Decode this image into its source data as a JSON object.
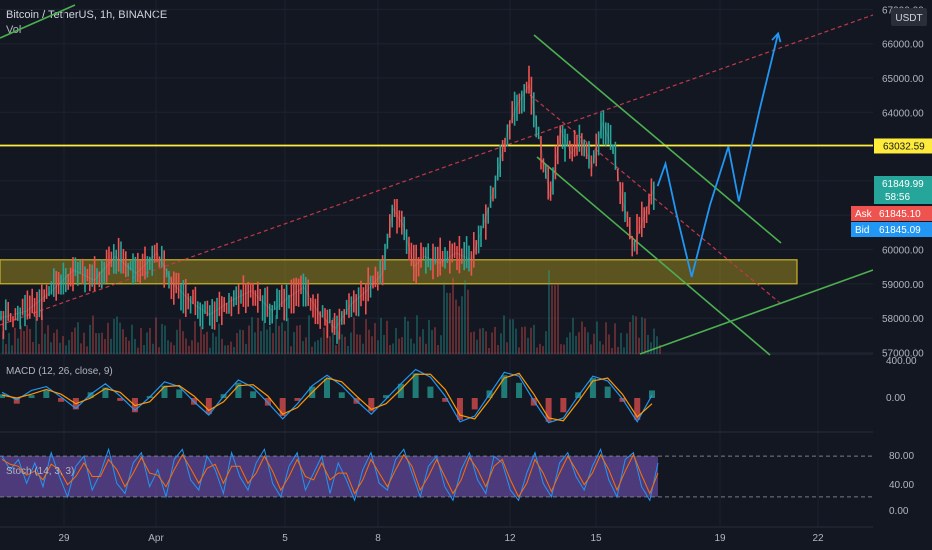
{
  "chart_data": {
    "type": "line",
    "title": "Bitcoin / TetherUS, 1h, BINANCE",
    "volume_label": "Vol",
    "currency": "USDT",
    "x_ticks": [
      "29",
      "Apr",
      "5",
      "8",
      "12",
      "15",
      "19",
      "22"
    ],
    "y_ticks": [
      57000,
      58000,
      59000,
      60000,
      61000,
      62000,
      63000,
      64000,
      65000,
      66000,
      67000
    ],
    "ylim": [
      57000,
      67000
    ],
    "price_path": [
      [
        0,
        58000
      ],
      [
        10,
        58200
      ],
      [
        20,
        58800
      ],
      [
        28,
        59400
      ],
      [
        36,
        59100
      ],
      [
        44,
        59800
      ],
      [
        52,
        59300
      ],
      [
        60,
        59900
      ],
      [
        66,
        59000
      ],
      [
        74,
        58400
      ],
      [
        80,
        58100
      ],
      [
        88,
        58500
      ],
      [
        96,
        58800
      ],
      [
        104,
        58200
      ],
      [
        110,
        58600
      ],
      [
        116,
        58900
      ],
      [
        122,
        58100
      ],
      [
        128,
        57700
      ],
      [
        134,
        58400
      ],
      [
        140,
        58800
      ],
      [
        146,
        59300
      ],
      [
        150,
        61200
      ],
      [
        154,
        60700
      ],
      [
        158,
        59500
      ],
      [
        162,
        59800
      ],
      [
        168,
        59600
      ],
      [
        174,
        59900
      ],
      [
        180,
        59700
      ],
      [
        184,
        60600
      ],
      [
        188,
        61600
      ],
      [
        194,
        63600
      ],
      [
        198,
        64300
      ],
      [
        202,
        64800
      ],
      [
        206,
        63200
      ],
      [
        210,
        61500
      ],
      [
        214,
        63500
      ],
      [
        218,
        62800
      ],
      [
        222,
        63200
      ],
      [
        226,
        62400
      ],
      [
        230,
        63700
      ],
      [
        234,
        62900
      ],
      [
        238,
        61300
      ],
      [
        242,
        60100
      ],
      [
        246,
        61000
      ],
      [
        250,
        61850
      ]
    ],
    "horizontal_levels": [
      {
        "value": 63032.59,
        "color": "#ffeb3b"
      }
    ],
    "support_zone": [
      59000,
      59700
    ],
    "projection_path": [
      [
        251,
        61850
      ],
      [
        254,
        62500
      ],
      [
        258,
        61100
      ],
      [
        264,
        59200
      ],
      [
        271,
        61300
      ],
      [
        278,
        63000
      ],
      [
        282,
        61400
      ],
      [
        290,
        64100
      ],
      [
        297,
        66300
      ]
    ],
    "price_labels": {
      "level": "63032.59",
      "last": "61849.99",
      "countdown": "58:56",
      "ask_tag": "Ask",
      "ask": "61845.10",
      "bid_tag": "Bid",
      "bid": "61845.09"
    },
    "macd": {
      "label": "MACD (12, 26, close, 9)",
      "y_ticks": [
        "400.00",
        "0.00"
      ],
      "histogram": [
        40,
        -60,
        30,
        80,
        -40,
        -120,
        60,
        110,
        -30,
        -150,
        20,
        130,
        90,
        -70,
        -170,
        40,
        160,
        70,
        -80,
        -190,
        -30,
        120,
        200,
        60,
        -60,
        -140,
        30,
        150,
        260,
        120,
        -40,
        -230,
        -120,
        80,
        240,
        160,
        -80,
        -250,
        -150,
        60,
        210,
        120,
        -40,
        -230,
        80
      ],
      "macd_line": [
        60,
        -20,
        80,
        120,
        10,
        -110,
        40,
        150,
        20,
        -130,
        10,
        170,
        120,
        -40,
        -180,
        20,
        190,
        110,
        -50,
        -220,
        -60,
        130,
        240,
        130,
        -30,
        -170,
        -10,
        150,
        300,
        220,
        20,
        -250,
        -190,
        40,
        270,
        230,
        -30,
        -260,
        -210,
        20,
        230,
        180,
        -10,
        -250,
        30
      ],
      "signal_line": [
        30,
        0,
        40,
        90,
        40,
        -60,
        0,
        100,
        60,
        -80,
        -40,
        120,
        130,
        20,
        -130,
        -40,
        130,
        140,
        20,
        -170,
        -100,
        60,
        210,
        170,
        20,
        -120,
        -60,
        90,
        250,
        250,
        90,
        -180,
        -220,
        -20,
        210,
        260,
        40,
        -210,
        -240,
        -40,
        180,
        210,
        40,
        -200,
        -60
      ]
    },
    "stoch": {
      "label": "Stoch (14, 3, 3)",
      "y_ticks": [
        "80.00",
        "40.00",
        "0.00"
      ],
      "band": [
        20,
        80
      ],
      "k_line": [
        80,
        60,
        75,
        40,
        70,
        35,
        85,
        50,
        20,
        65,
        80,
        30,
        55,
        90,
        40,
        25,
        70,
        85,
        35,
        60,
        20,
        75,
        90,
        45,
        30,
        80,
        60,
        25,
        85,
        50,
        30,
        70,
        90,
        40,
        20,
        65,
        85,
        30,
        55,
        80,
        25,
        70,
        45,
        15,
        60,
        85,
        40,
        30,
        75,
        90,
        55,
        20,
        65,
        80,
        35,
        15,
        60,
        85,
        45,
        25,
        80,
        70,
        30,
        15,
        55,
        85,
        40,
        20,
        70,
        85,
        50,
        30,
        65,
        90,
        45,
        20,
        75,
        85,
        35,
        15,
        70
      ],
      "d_line": [
        75,
        68,
        65,
        52,
        58,
        45,
        68,
        60,
        38,
        50,
        70,
        50,
        50,
        75,
        60,
        35,
        55,
        78,
        55,
        52,
        35,
        60,
        82,
        62,
        40,
        62,
        68,
        40,
        65,
        65,
        40,
        55,
        80,
        58,
        30,
        50,
        75,
        50,
        45,
        70,
        45,
        55,
        55,
        25,
        45,
        75,
        55,
        35,
        60,
        82,
        65,
        30,
        50,
        75,
        50,
        25,
        45,
        78,
        60,
        35,
        65,
        75,
        45,
        20,
        40,
        75,
        55,
        28,
        55,
        80,
        60,
        38,
        55,
        82,
        60,
        30,
        58,
        82,
        52,
        25,
        55
      ]
    }
  }
}
